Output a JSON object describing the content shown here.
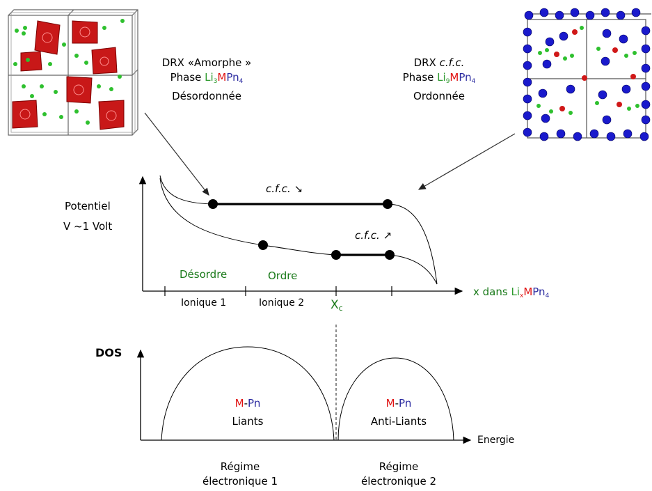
{
  "top_left": {
    "line1": "DRX «Amorphe »",
    "line2_prefix": "Phase ",
    "formula_li": "Li",
    "formula_li_sub": "3",
    "formula_m": "M",
    "formula_pn": "Pn",
    "formula_pn_sub": "4",
    "line3": "Désordonnée"
  },
  "top_right": {
    "line1_prefix": "DRX ",
    "line1_italic": "c.f.c.",
    "line2_prefix": "Phase ",
    "formula_li": "Li",
    "formula_li_sub": "9",
    "formula_m": "M",
    "formula_pn": "Pn",
    "formula_pn_sub": "4",
    "line3": "Ordonnée"
  },
  "potential_graph": {
    "ylabel_1": "Potentiel",
    "ylabel_2": "V ~1 Volt",
    "label_cfc_down": "c.f.c. ↘",
    "label_cfc_up": "c.f.c. ↗",
    "region_disorder": "Désordre",
    "region_order": "Ordre",
    "ionique_1": "Ionique 1",
    "ionique_2": "Ionique 2",
    "xc_main": "X",
    "xc_sub": "c",
    "xlabel_prefix": "x dans ",
    "xlabel_li": "Li",
    "xlabel_li_sub": "x",
    "xlabel_m": "M",
    "xlabel_pn": "Pn",
    "xlabel_pn_sub": "4"
  },
  "dos_graph": {
    "ylabel": "DOS",
    "xlabel": "Energie",
    "band1_m": "M",
    "band1_dash": "-",
    "band1_pn": "Pn",
    "band1_label": "Liants",
    "band2_m": "M",
    "band2_dash": "-",
    "band2_pn": "Pn",
    "band2_label": "Anti-Liants",
    "regime1_line1": "Régime",
    "regime1_line2": "électronique 1",
    "regime2_line1": "Régime",
    "regime2_line2": "électronique  2"
  },
  "colors": {
    "li_green": "#2e9a2e",
    "m_red": "#e01010",
    "pn_blue": "#2a2aa0",
    "region_green": "#1a7a1a",
    "polyhedra_red": "#c81818",
    "atom_blue": "#1a1acc"
  }
}
